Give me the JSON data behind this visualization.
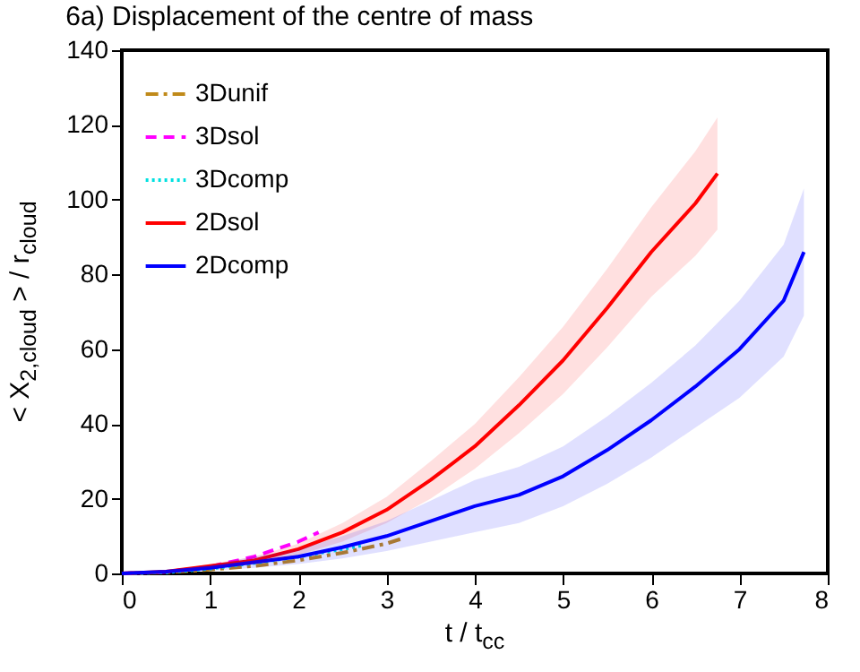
{
  "chart_data": {
    "type": "line",
    "title": "6a) Displacement of the centre of mass",
    "xlabel": "t / t$_{cc}$",
    "ylabel": "< X$_{2,cloud}$ > / r$_{cloud}$",
    "xlim": [
      0,
      8
    ],
    "xticks": [
      0,
      1,
      2,
      3,
      4,
      5,
      6,
      7,
      8
    ],
    "ylim": [
      0,
      140
    ],
    "yticks": [
      0,
      20,
      40,
      60,
      80,
      100,
      120,
      140
    ],
    "legend": "top left",
    "series": [
      {
        "name": "3Dunif",
        "color": "#c08a1a",
        "line_style": "dashdot",
        "x": [
          0,
          0.5,
          1,
          1.5,
          2,
          2.5,
          3,
          3.2
        ],
        "values": [
          0,
          0.3,
          1,
          2,
          3.5,
          5.5,
          8,
          9.5
        ]
      },
      {
        "name": "3Dsol",
        "color": "#ff00ff",
        "line_style": "dashed",
        "x": [
          0,
          0.5,
          1,
          1.5,
          2,
          2.23
        ],
        "values": [
          0,
          0.4,
          1.8,
          4.5,
          8.5,
          11
        ]
      },
      {
        "name": "3Dcomp",
        "color": "#00e0e0",
        "line_style": "dotted",
        "x": [
          0,
          0.5,
          1,
          1.5,
          2,
          2.5,
          2.75
        ],
        "values": [
          0,
          0.3,
          1.3,
          2.8,
          4.5,
          6.5,
          7.6
        ]
      },
      {
        "name": "2Dsol",
        "color": "#ff0000",
        "line_style": "solid",
        "x": [
          0,
          0.5,
          1,
          1.5,
          2,
          2.5,
          3,
          3.5,
          4,
          4.5,
          5,
          5.5,
          6,
          6.5,
          6.75
        ],
        "values": [
          0,
          0.5,
          2,
          3.5,
          6.5,
          11,
          17,
          25,
          34,
          45,
          57,
          71,
          86,
          99,
          107
        ],
        "upper": [
          0,
          0.7,
          2.5,
          4.5,
          8,
          13.5,
          20.5,
          30,
          40,
          52.5,
          66,
          81.5,
          98,
          113,
          122
        ],
        "lower": [
          0,
          0.3,
          1.5,
          2.5,
          5,
          8.5,
          13.5,
          20,
          28,
          37.5,
          48,
          60.5,
          74,
          85,
          92
        ]
      },
      {
        "name": "2Dcomp",
        "color": "#0000ff",
        "line_style": "solid",
        "x": [
          0,
          0.5,
          1,
          1.5,
          2,
          2.5,
          3,
          3.5,
          4,
          4.5,
          5,
          5.5,
          6,
          6.5,
          7,
          7.5,
          7.73
        ],
        "values": [
          0,
          0.5,
          1.5,
          3,
          4.5,
          7,
          10,
          14,
          18,
          21,
          26,
          33,
          41,
          50,
          60,
          73,
          86
        ],
        "upper": [
          0,
          0.8,
          2.3,
          4.5,
          6.5,
          10,
          14,
          19.5,
          25,
          28.5,
          34,
          42,
          51,
          61,
          73,
          88,
          103
        ],
        "lower": [
          0,
          0.2,
          0.7,
          1.5,
          2.5,
          4,
          6,
          8.5,
          11,
          13.5,
          18,
          24,
          31,
          39,
          47,
          58,
          69
        ]
      }
    ]
  }
}
